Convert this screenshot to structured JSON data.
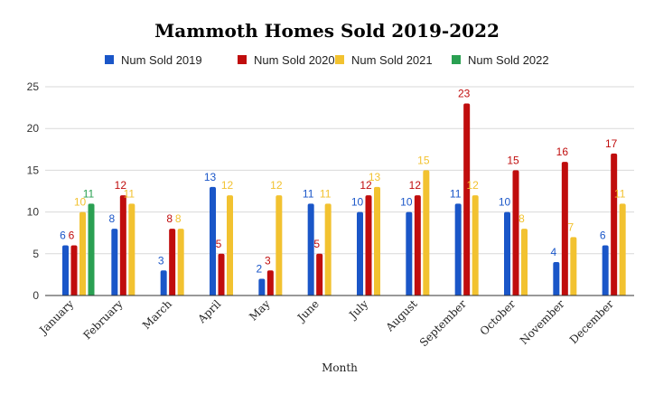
{
  "chart_data": {
    "type": "bar",
    "title": "Mammoth Homes Sold 2019-2022",
    "xlabel": "Month",
    "ylabel": "",
    "ylim": [
      0,
      25
    ],
    "yticks": [
      0,
      5,
      10,
      15,
      20,
      25
    ],
    "grid": true,
    "legend_position": "top",
    "categories": [
      "January",
      "February",
      "March",
      "April",
      "May",
      "June",
      "July",
      "August",
      "September",
      "October",
      "November",
      "December"
    ],
    "series": [
      {
        "name": "Num Sold 2019",
        "color": "#1a56c8",
        "values": [
          6,
          8,
          3,
          13,
          2,
          11,
          10,
          10,
          11,
          10,
          4,
          6
        ]
      },
      {
        "name": "Num Sold 2020",
        "color": "#c00d0d",
        "values": [
          6,
          12,
          8,
          5,
          3,
          5,
          12,
          12,
          23,
          15,
          16,
          17
        ]
      },
      {
        "name": "Num Sold 2021",
        "color": "#f2c230",
        "values": [
          10,
          11,
          8,
          12,
          12,
          11,
          13,
          15,
          12,
          8,
          7,
          11
        ]
      },
      {
        "name": "Num Sold 2022",
        "color": "#2aa052",
        "values": [
          11,
          null,
          null,
          null,
          null,
          null,
          null,
          null,
          null,
          null,
          null,
          null
        ]
      }
    ]
  }
}
